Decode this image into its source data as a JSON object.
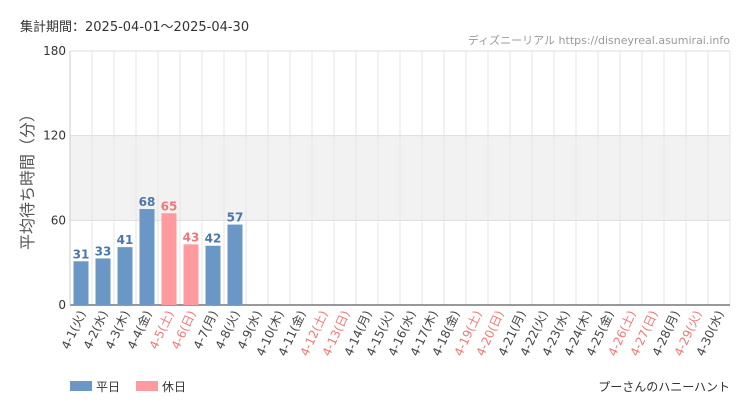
{
  "period": "集計期間：2025-04-01〜2025-04-30",
  "source": "ディズニーリアル https://disneyreal.asumirai.info",
  "attraction": "プーさんのハニーハント",
  "colors": {
    "weekday": "#6a97c6",
    "holiday": "#ff9a9e",
    "weekday_label": "#4a78ac",
    "holiday_label": "#f07878",
    "weekday_tick": "#444444",
    "holiday_tick": "#f07878"
  },
  "chart_data": {
    "type": "bar",
    "title": "",
    "xlabel": "",
    "ylabel": "平均待ち時間（分）",
    "ylim": [
      0,
      180
    ],
    "yticks": [
      0,
      60,
      120,
      180
    ],
    "grid": true,
    "legend_position": "bottom-left",
    "legend": [
      {
        "name": "平日",
        "kind": "weekday"
      },
      {
        "name": "休日",
        "kind": "holiday"
      }
    ],
    "categories": [
      "4-1(火)",
      "4-2(水)",
      "4-3(木)",
      "4-4(金)",
      "4-5(土)",
      "4-6(日)",
      "4-7(月)",
      "4-8(火)",
      "4-9(水)",
      "4-10(木)",
      "4-11(金)",
      "4-12(土)",
      "4-13(日)",
      "4-14(月)",
      "4-15(火)",
      "4-16(水)",
      "4-17(木)",
      "4-18(金)",
      "4-19(土)",
      "4-20(日)",
      "4-21(月)",
      "4-22(火)",
      "4-23(水)",
      "4-24(木)",
      "4-25(金)",
      "4-26(土)",
      "4-27(日)",
      "4-28(月)",
      "4-29(火)",
      "4-30(水)"
    ],
    "values": [
      31,
      33,
      41,
      68,
      65,
      43,
      42,
      57,
      null,
      null,
      null,
      null,
      null,
      null,
      null,
      null,
      null,
      null,
      null,
      null,
      null,
      null,
      null,
      null,
      null,
      null,
      null,
      null,
      null,
      null
    ],
    "day_type": [
      "weekday",
      "weekday",
      "weekday",
      "weekday",
      "holiday",
      "holiday",
      "weekday",
      "weekday",
      "weekday",
      "weekday",
      "weekday",
      "holiday",
      "holiday",
      "weekday",
      "weekday",
      "weekday",
      "weekday",
      "weekday",
      "holiday",
      "holiday",
      "weekday",
      "weekday",
      "weekday",
      "weekday",
      "weekday",
      "holiday",
      "holiday",
      "weekday",
      "holiday",
      "weekday"
    ]
  }
}
